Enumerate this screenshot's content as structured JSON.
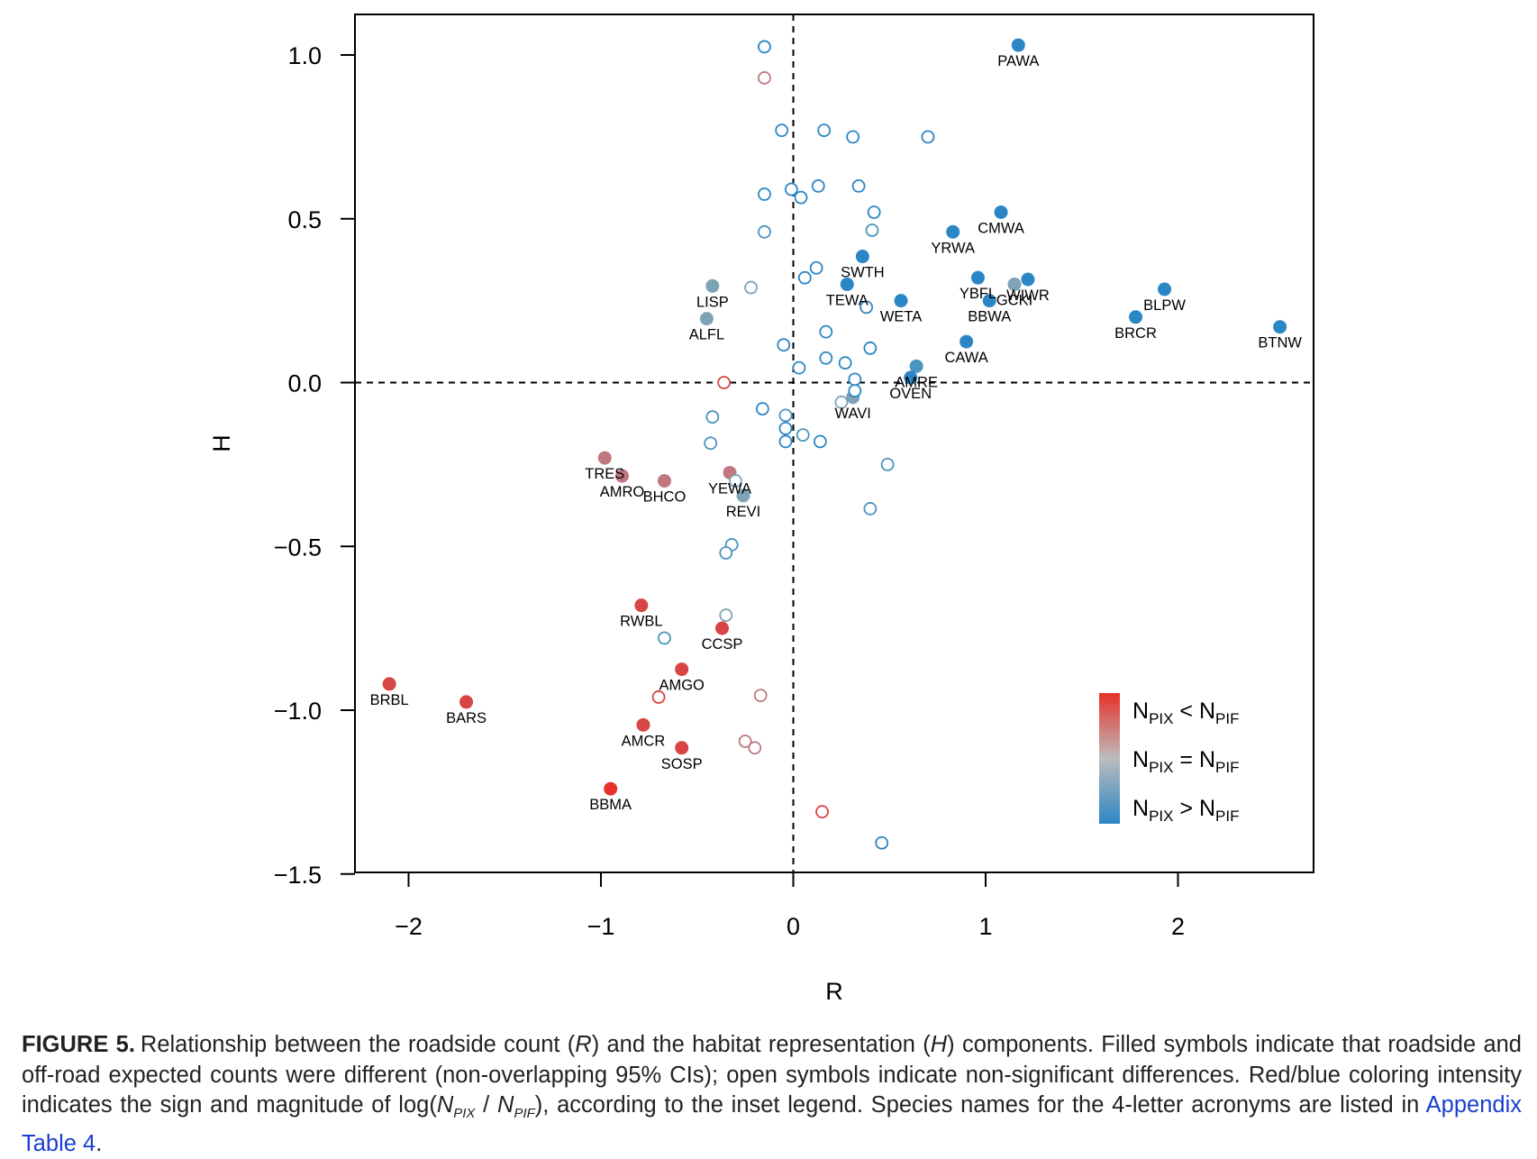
{
  "chart_data": {
    "type": "scatter",
    "xlabel": "R",
    "ylabel": "H",
    "xlim": [
      -2.3,
      2.7
    ],
    "ylim": [
      -1.5,
      1.13
    ],
    "xticks": [
      -2,
      -1,
      0,
      1,
      2
    ],
    "yticks": [
      1.0,
      0.5,
      0.0,
      -0.5,
      -1.0,
      -1.5
    ],
    "xtick_labels": [
      "−2",
      "−1",
      "0",
      "1",
      "2"
    ],
    "ytick_labels": [
      "1.0",
      "0.5",
      "0.0",
      "−0.5",
      "−1.0",
      "−1.5"
    ],
    "reference_lines": {
      "x": 0,
      "y": 0,
      "style": "dashed"
    },
    "grid": false,
    "legend": {
      "placement": "bottom-right",
      "gradient_colors": [
        "#e8312a",
        "#bcbcbc",
        "#2b86c5"
      ],
      "entries": [
        {
          "base": "N",
          "sub": "PIX",
          "op": "<",
          "base2": "N",
          "sub2": "PIF"
        },
        {
          "base": "N",
          "sub": "PIX",
          "op": "=",
          "base2": "N",
          "sub2": "PIF"
        },
        {
          "base": "N",
          "sub": "PIX",
          "op": ">",
          "base2": "N",
          "sub2": "PIF"
        }
      ]
    },
    "colors": {
      "blue": "#2b86c5",
      "teal": "#4a94bd",
      "gray": "#7ea3b6",
      "mauve": "#c07880",
      "red": "#d84545",
      "brightred": "#e8312a"
    },
    "points": [
      {
        "label": "PAWA",
        "x": 1.17,
        "y": 1.03,
        "filled": true,
        "color": "blue"
      },
      {
        "label": "CMWA",
        "x": 1.08,
        "y": 0.52,
        "filled": true,
        "color": "blue"
      },
      {
        "label": "YRWA",
        "x": 0.83,
        "y": 0.46,
        "filled": true,
        "color": "blue"
      },
      {
        "label": "SWTH",
        "x": 0.36,
        "y": 0.385,
        "filled": true,
        "color": "blue"
      },
      {
        "label": "TEWA",
        "x": 0.28,
        "y": 0.3,
        "filled": true,
        "color": "blue"
      },
      {
        "label": "WETA",
        "x": 0.56,
        "y": 0.25,
        "filled": true,
        "color": "blue"
      },
      {
        "label": "YBFL",
        "x": 0.96,
        "y": 0.32,
        "filled": true,
        "color": "blue"
      },
      {
        "label": "BBWA",
        "x": 1.02,
        "y": 0.25,
        "filled": true,
        "color": "blue"
      },
      {
        "label": "GCKI",
        "x": 1.15,
        "y": 0.3,
        "filled": true,
        "color": "gray"
      },
      {
        "label": "WIWR",
        "x": 1.22,
        "y": 0.315,
        "filled": true,
        "color": "blue"
      },
      {
        "label": "BLPW",
        "x": 1.93,
        "y": 0.285,
        "filled": true,
        "color": "blue"
      },
      {
        "label": "BRCR",
        "x": 1.78,
        "y": 0.2,
        "filled": true,
        "color": "blue"
      },
      {
        "label": "BTNW",
        "x": 2.53,
        "y": 0.17,
        "filled": true,
        "color": "blue"
      },
      {
        "label": "CAWA",
        "x": 0.9,
        "y": 0.125,
        "filled": true,
        "color": "blue"
      },
      {
        "label": "AMRE",
        "x": 0.64,
        "y": 0.05,
        "filled": true,
        "color": "teal"
      },
      {
        "label": "OVEN",
        "x": 0.61,
        "y": 0.015,
        "filled": true,
        "color": "blue"
      },
      {
        "label": "WAVI",
        "x": 0.31,
        "y": -0.045,
        "filled": true,
        "color": "gray"
      },
      {
        "label": "LISP",
        "x": -0.42,
        "y": 0.295,
        "filled": true,
        "color": "gray"
      },
      {
        "label": "ALFL",
        "x": -0.45,
        "y": 0.195,
        "filled": true,
        "color": "gray"
      },
      {
        "label": "TRES",
        "x": -0.98,
        "y": -0.23,
        "filled": true,
        "color": "mauve"
      },
      {
        "label": "AMRO",
        "x": -0.89,
        "y": -0.285,
        "filled": true,
        "color": "mauve"
      },
      {
        "label": "BHCO",
        "x": -0.67,
        "y": -0.3,
        "filled": true,
        "color": "mauve"
      },
      {
        "label": "YEWA",
        "x": -0.33,
        "y": -0.275,
        "filled": true,
        "color": "mauve"
      },
      {
        "label": "REVI",
        "x": -0.26,
        "y": -0.345,
        "filled": true,
        "color": "gray"
      },
      {
        "label": "RWBL",
        "x": -0.79,
        "y": -0.68,
        "filled": true,
        "color": "red"
      },
      {
        "label": "CCSP",
        "x": -0.37,
        "y": -0.75,
        "filled": true,
        "color": "red"
      },
      {
        "label": "AMGO",
        "x": -0.58,
        "y": -0.875,
        "filled": true,
        "color": "red"
      },
      {
        "label": "AMCR",
        "x": -0.78,
        "y": -1.045,
        "filled": true,
        "color": "red"
      },
      {
        "label": "SOSP",
        "x": -0.58,
        "y": -1.115,
        "filled": true,
        "color": "red"
      },
      {
        "label": "BBMA",
        "x": -0.95,
        "y": -1.24,
        "filled": true,
        "color": "brightred"
      },
      {
        "label": "BRBL",
        "x": -2.1,
        "y": -0.92,
        "filled": true,
        "color": "red"
      },
      {
        "label": "BARS",
        "x": -1.7,
        "y": -0.975,
        "filled": true,
        "color": "red"
      },
      {
        "x": -0.15,
        "y": 1.025,
        "filled": false,
        "color": "blue"
      },
      {
        "x": -0.15,
        "y": 0.93,
        "filled": false,
        "color": "mauve"
      },
      {
        "x": -0.06,
        "y": 0.77,
        "filled": false,
        "color": "blue"
      },
      {
        "x": 0.16,
        "y": 0.77,
        "filled": false,
        "color": "blue"
      },
      {
        "x": 0.31,
        "y": 0.75,
        "filled": false,
        "color": "blue"
      },
      {
        "x": 0.7,
        "y": 0.75,
        "filled": false,
        "color": "blue"
      },
      {
        "x": -0.15,
        "y": 0.575,
        "filled": false,
        "color": "blue"
      },
      {
        "x": -0.01,
        "y": 0.59,
        "filled": false,
        "color": "blue"
      },
      {
        "x": 0.04,
        "y": 0.565,
        "filled": false,
        "color": "blue"
      },
      {
        "x": 0.13,
        "y": 0.6,
        "filled": false,
        "color": "blue"
      },
      {
        "x": 0.34,
        "y": 0.6,
        "filled": false,
        "color": "blue"
      },
      {
        "x": 0.42,
        "y": 0.52,
        "filled": false,
        "color": "blue"
      },
      {
        "x": -0.15,
        "y": 0.46,
        "filled": false,
        "color": "teal"
      },
      {
        "x": 0.41,
        "y": 0.465,
        "filled": false,
        "color": "teal"
      },
      {
        "x": 0.12,
        "y": 0.35,
        "filled": false,
        "color": "blue"
      },
      {
        "x": 0.06,
        "y": 0.32,
        "filled": false,
        "color": "blue"
      },
      {
        "x": -0.22,
        "y": 0.29,
        "filled": false,
        "color": "gray"
      },
      {
        "x": 0.38,
        "y": 0.23,
        "filled": false,
        "color": "blue"
      },
      {
        "x": 0.17,
        "y": 0.155,
        "filled": false,
        "color": "blue"
      },
      {
        "x": -0.05,
        "y": 0.115,
        "filled": false,
        "color": "blue"
      },
      {
        "x": 0.4,
        "y": 0.105,
        "filled": false,
        "color": "blue"
      },
      {
        "x": 0.17,
        "y": 0.075,
        "filled": false,
        "color": "blue"
      },
      {
        "x": 0.27,
        "y": 0.06,
        "filled": false,
        "color": "blue"
      },
      {
        "x": 0.03,
        "y": 0.045,
        "filled": false,
        "color": "blue"
      },
      {
        "x": -0.36,
        "y": 0.0,
        "filled": false,
        "color": "red"
      },
      {
        "x": 0.32,
        "y": 0.01,
        "filled": false,
        "color": "blue"
      },
      {
        "x": 0.32,
        "y": -0.025,
        "filled": false,
        "color": "blue"
      },
      {
        "x": 0.25,
        "y": -0.06,
        "filled": false,
        "color": "gray"
      },
      {
        "x": -0.16,
        "y": -0.08,
        "filled": false,
        "color": "blue"
      },
      {
        "x": -0.04,
        "y": -0.1,
        "filled": false,
        "color": "teal"
      },
      {
        "x": -0.42,
        "y": -0.105,
        "filled": false,
        "color": "teal"
      },
      {
        "x": -0.04,
        "y": -0.14,
        "filled": false,
        "color": "blue"
      },
      {
        "x": 0.05,
        "y": -0.16,
        "filled": false,
        "color": "teal"
      },
      {
        "x": -0.04,
        "y": -0.18,
        "filled": false,
        "color": "blue"
      },
      {
        "x": 0.14,
        "y": -0.18,
        "filled": false,
        "color": "blue"
      },
      {
        "x": -0.43,
        "y": -0.185,
        "filled": false,
        "color": "teal"
      },
      {
        "x": 0.49,
        "y": -0.25,
        "filled": false,
        "color": "teal"
      },
      {
        "x": -0.3,
        "y": -0.3,
        "filled": false,
        "color": "gray"
      },
      {
        "x": 0.4,
        "y": -0.385,
        "filled": false,
        "color": "teal"
      },
      {
        "x": -0.32,
        "y": -0.495,
        "filled": false,
        "color": "teal"
      },
      {
        "x": -0.35,
        "y": -0.52,
        "filled": false,
        "color": "teal"
      },
      {
        "x": -0.35,
        "y": -0.71,
        "filled": false,
        "color": "gray"
      },
      {
        "x": -0.67,
        "y": -0.78,
        "filled": false,
        "color": "teal"
      },
      {
        "x": -0.7,
        "y": -0.96,
        "filled": false,
        "color": "red"
      },
      {
        "x": -0.17,
        "y": -0.955,
        "filled": false,
        "color": "mauve"
      },
      {
        "x": -0.25,
        "y": -1.095,
        "filled": false,
        "color": "mauve"
      },
      {
        "x": -0.2,
        "y": -1.115,
        "filled": false,
        "color": "mauve"
      },
      {
        "x": 0.15,
        "y": -1.31,
        "filled": false,
        "color": "red"
      },
      {
        "x": 0.46,
        "y": -1.405,
        "filled": false,
        "color": "blue"
      }
    ]
  },
  "caption": {
    "label": "FIGURE 5.",
    "text_1": "Relationship between the roadside count (",
    "r_symbol": "R",
    "text_2": ") and the habitat representation (",
    "h_symbol": "H",
    "text_3": ") components. Filled symbols indicate that roadside and off-road expected counts were different (non-overlapping 95% CIs); open symbols indicate non-significant differences. Red/blue coloring intensity indicates the sign and magnitude of log(",
    "n1": "N",
    "n1_sub": "PIX",
    "slash": " / ",
    "n2": "N",
    "n2_sub": "PIF",
    "text_4": "), according to the inset legend. Species names for the 4-letter acronyms are listed in ",
    "link_text": "Appendix Table 4",
    "text_5": "."
  }
}
